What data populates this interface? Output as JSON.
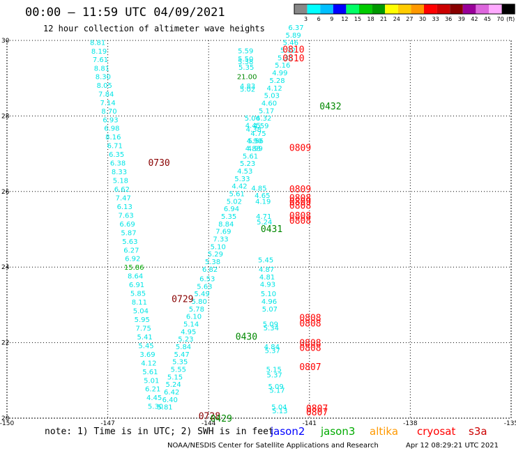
{
  "header": {
    "title": "00:00 – 11:59 UTC 04/09/2021",
    "subtitle": "12 hour collection of altimeter wave heights"
  },
  "scale_bar": {
    "unit": "(ft)",
    "labels": [
      "3",
      "6",
      "9",
      "12",
      "15",
      "18",
      "21",
      "24",
      "27",
      "30",
      "33",
      "36",
      "39",
      "42",
      "45",
      "70"
    ],
    "colors": [
      "#888888",
      "#00ffff",
      "#00bfff",
      "#0000ff",
      "#00ff66",
      "#00cc00",
      "#009900",
      "#ffff00",
      "#ffcc00",
      "#ff9900",
      "#ff0000",
      "#cc0000",
      "#880000",
      "#990099",
      "#dd66dd",
      "#ffaaff",
      "#000000"
    ]
  },
  "footer": {
    "note": "note: 1) Time is in UTC; 2) SWH is in feet",
    "credit": "NOAA/NESDIS Center for Satellite Applications and Research",
    "generated": "Apr 12 08:29:21 UTC 2021",
    "satellites": [
      {
        "name": "jason2",
        "color": "#0000ff"
      },
      {
        "name": "jason3",
        "color": "#00aa00"
      },
      {
        "name": "altika",
        "color": "#ff9900"
      },
      {
        "name": "cryosat",
        "color": "#ff0000"
      },
      {
        "name": "s3a",
        "color": "#cc0000"
      }
    ]
  },
  "colors": {
    "swh": "#00e5e5",
    "green_label": "#008800",
    "red_label": "#ff0000",
    "darkred_label": "#880000"
  },
  "chart_data": {
    "type": "scatter",
    "xlim": [
      -150,
      -135
    ],
    "ylim": [
      20,
      30
    ],
    "xticks": [
      -150,
      -147,
      -144,
      -141,
      -138,
      -135
    ],
    "xtick_labels": [
      "-150",
      "-147",
      "-144",
      "-141",
      "-138",
      "-135"
    ],
    "yticks": [
      20,
      22,
      24,
      26,
      28,
      30
    ],
    "ytick_labels": [
      "20",
      "22",
      "24",
      "26",
      "28",
      "30"
    ],
    "grid": true,
    "tracks": [
      {
        "id": "track-west",
        "points": [
          {
            "lon": -147.3,
            "lat": 29.95,
            "v": "8.81"
          },
          {
            "lon": -147.26,
            "lat": 29.72,
            "v": "8.19"
          },
          {
            "lon": -147.22,
            "lat": 29.5,
            "v": "7.61"
          },
          {
            "lon": -147.18,
            "lat": 29.27,
            "v": "8.81"
          },
          {
            "lon": -147.14,
            "lat": 29.05,
            "v": "8.30"
          },
          {
            "lon": -147.1,
            "lat": 28.82,
            "v": "8.05"
          },
          {
            "lon": -147.05,
            "lat": 28.59,
            "v": "7.84"
          },
          {
            "lon": -147.0,
            "lat": 28.36,
            "v": "7.14"
          },
          {
            "lon": -146.96,
            "lat": 28.14,
            "v": "8.70"
          },
          {
            "lon": -146.92,
            "lat": 27.91,
            "v": "6.93"
          },
          {
            "lon": -146.88,
            "lat": 27.68,
            "v": "6.98"
          },
          {
            "lon": -146.84,
            "lat": 27.45,
            "v": "8.16"
          },
          {
            "lon": -146.79,
            "lat": 27.22,
            "v": "6.71"
          },
          {
            "lon": -146.74,
            "lat": 26.99,
            "v": "6.35"
          },
          {
            "lon": -146.7,
            "lat": 26.76,
            "v": "6.38"
          },
          {
            "lon": -146.66,
            "lat": 26.53,
            "v": "8.33"
          },
          {
            "lon": -146.62,
            "lat": 26.3,
            "v": "5.18"
          },
          {
            "lon": -146.58,
            "lat": 26.07,
            "v": "6.62"
          },
          {
            "lon": -146.54,
            "lat": 25.84,
            "v": "7.47"
          },
          {
            "lon": -146.5,
            "lat": 25.61,
            "v": "6.13"
          },
          {
            "lon": -146.46,
            "lat": 25.38,
            "v": "7.63"
          },
          {
            "lon": -146.42,
            "lat": 25.15,
            "v": "6.69"
          },
          {
            "lon": -146.38,
            "lat": 24.92,
            "v": "5.87"
          },
          {
            "lon": -146.34,
            "lat": 24.69,
            "v": "5.63"
          },
          {
            "lon": -146.3,
            "lat": 24.46,
            "v": "6.27"
          },
          {
            "lon": -146.26,
            "lat": 24.23,
            "v": "6.92"
          },
          {
            "lon": -146.22,
            "lat": 24.0,
            "v": "15.86",
            "c": "#00aa00"
          },
          {
            "lon": -146.18,
            "lat": 23.77,
            "v": "8.64"
          },
          {
            "lon": -146.14,
            "lat": 23.54,
            "v": "6.91"
          },
          {
            "lon": -146.1,
            "lat": 23.31,
            "v": "5.85"
          },
          {
            "lon": -146.06,
            "lat": 23.08,
            "v": "8.11"
          },
          {
            "lon": -146.02,
            "lat": 22.85,
            "v": "5.04"
          },
          {
            "lon": -145.98,
            "lat": 22.62,
            "v": "5.95"
          },
          {
            "lon": -145.94,
            "lat": 22.39,
            "v": "7.75"
          },
          {
            "lon": -145.9,
            "lat": 22.16,
            "v": "5.41"
          },
          {
            "lon": -145.86,
            "lat": 21.93,
            "v": "5.45"
          },
          {
            "lon": -145.82,
            "lat": 21.7,
            "v": "3.69"
          },
          {
            "lon": -145.78,
            "lat": 21.47,
            "v": "4.12"
          },
          {
            "lon": -145.74,
            "lat": 21.24,
            "v": "5.61"
          },
          {
            "lon": -145.7,
            "lat": 21.01,
            "v": "5.01"
          },
          {
            "lon": -145.66,
            "lat": 20.78,
            "v": "6.21"
          },
          {
            "lon": -145.62,
            "lat": 20.55,
            "v": "4.45"
          },
          {
            "lon": -145.58,
            "lat": 20.32,
            "v": "5.30"
          }
        ]
      },
      {
        "id": "track-middle",
        "points": [
          {
            "lon": -145.3,
            "lat": 20.3,
            "v": "5.81"
          },
          {
            "lon": -145.15,
            "lat": 20.5,
            "v": "6.40"
          },
          {
            "lon": -145.1,
            "lat": 20.7,
            "v": "6.42"
          },
          {
            "lon": -145.05,
            "lat": 20.9,
            "v": "5.24"
          },
          {
            "lon": -145.0,
            "lat": 21.1,
            "v": "5.15"
          },
          {
            "lon": -144.9,
            "lat": 21.3,
            "v": "5.55"
          },
          {
            "lon": -144.85,
            "lat": 21.5,
            "v": "5.35"
          },
          {
            "lon": -144.8,
            "lat": 21.7,
            "v": "5.47"
          },
          {
            "lon": -144.75,
            "lat": 21.9,
            "v": "5.84"
          },
          {
            "lon": -144.68,
            "lat": 22.1,
            "v": "5.23"
          },
          {
            "lon": -144.6,
            "lat": 22.3,
            "v": "4.95"
          },
          {
            "lon": -144.52,
            "lat": 22.5,
            "v": "5.14"
          },
          {
            "lon": -144.44,
            "lat": 22.7,
            "v": "6.10"
          },
          {
            "lon": -144.36,
            "lat": 22.9,
            "v": "5.78"
          },
          {
            "lon": -144.28,
            "lat": 23.1,
            "v": "5.80"
          },
          {
            "lon": -144.2,
            "lat": 23.3,
            "v": "5.49"
          },
          {
            "lon": -144.12,
            "lat": 23.5,
            "v": "5.63"
          },
          {
            "lon": -144.04,
            "lat": 23.7,
            "v": "6.53"
          },
          {
            "lon": -143.96,
            "lat": 23.95,
            "v": "6.82"
          },
          {
            "lon": -143.88,
            "lat": 24.15,
            "v": "5.38"
          },
          {
            "lon": -143.8,
            "lat": 24.35,
            "v": "5.29"
          },
          {
            "lon": -143.72,
            "lat": 24.55,
            "v": "5.10"
          },
          {
            "lon": -143.64,
            "lat": 24.75,
            "v": "7.33"
          },
          {
            "lon": -143.56,
            "lat": 24.95,
            "v": "7.69"
          },
          {
            "lon": -143.48,
            "lat": 25.15,
            "v": "8.84"
          },
          {
            "lon": -143.4,
            "lat": 25.35,
            "v": "5.35"
          },
          {
            "lon": -143.32,
            "lat": 25.55,
            "v": "6.94"
          },
          {
            "lon": -143.24,
            "lat": 25.75,
            "v": "5.02"
          },
          {
            "lon": -143.16,
            "lat": 25.95,
            "v": "5.61"
          },
          {
            "lon": -143.08,
            "lat": 26.15,
            "v": "4.42"
          },
          {
            "lon": -143.0,
            "lat": 26.35,
            "v": "5.33"
          },
          {
            "lon": -142.92,
            "lat": 26.55,
            "v": "4.53"
          },
          {
            "lon": -142.84,
            "lat": 26.75,
            "v": "5.23"
          },
          {
            "lon": -142.76,
            "lat": 26.95,
            "v": "5.61"
          },
          {
            "lon": -142.68,
            "lat": 27.15,
            "v": "4.83"
          },
          {
            "lon": -142.6,
            "lat": 27.35,
            "v": "5.56"
          },
          {
            "lon": -142.52,
            "lat": 27.55,
            "v": "4.75"
          },
          {
            "lon": -142.44,
            "lat": 27.75,
            "v": "4.59"
          },
          {
            "lon": -142.36,
            "lat": 27.95,
            "v": "4.32"
          },
          {
            "lon": -142.28,
            "lat": 28.15,
            "v": "5.17"
          },
          {
            "lon": -142.2,
            "lat": 28.35,
            "v": "4.60"
          },
          {
            "lon": -142.12,
            "lat": 28.55,
            "v": "5.03"
          },
          {
            "lon": -142.04,
            "lat": 28.75,
            "v": "4.12"
          },
          {
            "lon": -141.96,
            "lat": 28.95,
            "v": "5.28"
          },
          {
            "lon": -141.88,
            "lat": 29.15,
            "v": "4.99"
          },
          {
            "lon": -141.8,
            "lat": 29.35,
            "v": "5.16"
          },
          {
            "lon": -141.72,
            "lat": 29.55,
            "v": "5.35"
          },
          {
            "lon": -141.64,
            "lat": 29.75,
            "v": "5.32"
          },
          {
            "lon": -141.56,
            "lat": 29.95,
            "v": "5.46"
          },
          {
            "lon": -141.48,
            "lat": 30.15,
            "v": "5.89"
          },
          {
            "lon": -141.4,
            "lat": 30.35,
            "v": "6.37"
          }
        ]
      },
      {
        "id": "track-east",
        "points": [
          {
            "lon": -142.9,
            "lat": 29.73,
            "v": "5.59"
          },
          {
            "lon": -142.9,
            "lat": 29.52,
            "v": "5.50"
          },
          {
            "lon": -142.9,
            "lat": 29.45,
            "v": "5.38"
          },
          {
            "lon": -142.88,
            "lat": 29.3,
            "v": "5.35"
          },
          {
            "lon": -142.86,
            "lat": 29.05,
            "v": "21.00",
            "c": "#008800"
          },
          {
            "lon": -142.84,
            "lat": 28.8,
            "v": "4.83"
          },
          {
            "lon": -142.84,
            "lat": 28.72,
            "v": "5.02"
          },
          {
            "lon": -142.7,
            "lat": 27.95,
            "v": "5.06"
          },
          {
            "lon": -142.68,
            "lat": 27.76,
            "v": "4.45"
          },
          {
            "lon": -142.66,
            "lat": 27.66,
            "v": "4.38"
          },
          {
            "lon": -142.64,
            "lat": 27.35,
            "v": "4.90"
          },
          {
            "lon": -142.62,
            "lat": 27.15,
            "v": "4.99"
          },
          {
            "lon": -142.5,
            "lat": 26.1,
            "v": "4.85"
          },
          {
            "lon": -142.4,
            "lat": 25.9,
            "v": "4.65"
          },
          {
            "lon": -142.38,
            "lat": 25.75,
            "v": "4.19"
          },
          {
            "lon": -142.36,
            "lat": 25.35,
            "v": "4.71"
          },
          {
            "lon": -142.34,
            "lat": 25.2,
            "v": "5.24"
          },
          {
            "lon": -142.3,
            "lat": 24.2,
            "v": "5.45"
          },
          {
            "lon": -142.28,
            "lat": 23.95,
            "v": "4.87"
          },
          {
            "lon": -142.26,
            "lat": 23.75,
            "v": "4.81"
          },
          {
            "lon": -142.24,
            "lat": 23.55,
            "v": "4.93"
          },
          {
            "lon": -142.22,
            "lat": 23.3,
            "v": "5.10"
          },
          {
            "lon": -142.2,
            "lat": 23.1,
            "v": "4.96"
          },
          {
            "lon": -142.18,
            "lat": 22.9,
            "v": "5.07"
          },
          {
            "lon": -142.16,
            "lat": 22.5,
            "v": "5.09"
          },
          {
            "lon": -142.14,
            "lat": 22.4,
            "v": "5.34"
          },
          {
            "lon": -142.12,
            "lat": 21.9,
            "v": "4.84"
          },
          {
            "lon": -142.1,
            "lat": 21.8,
            "v": "5.37"
          },
          {
            "lon": -142.06,
            "lat": 21.3,
            "v": "5.15"
          },
          {
            "lon": -142.04,
            "lat": 21.15,
            "v": "5.37"
          },
          {
            "lon": -142.0,
            "lat": 20.85,
            "v": "5.09"
          },
          {
            "lon": -141.96,
            "lat": 20.75,
            "v": "5.17"
          },
          {
            "lon": -141.9,
            "lat": 20.3,
            "v": "5.04"
          },
          {
            "lon": -141.88,
            "lat": 20.2,
            "v": "5.13"
          }
        ]
      }
    ],
    "time_labels": [
      {
        "lon": -141.8,
        "lat": 29.75,
        "t": "0810",
        "c": "#ff0000"
      },
      {
        "lon": -141.8,
        "lat": 29.52,
        "t": "0810",
        "c": "#ff0000"
      },
      {
        "lon": -140.7,
        "lat": 28.25,
        "t": "0432",
        "c": "#008800"
      },
      {
        "lon": -141.6,
        "lat": 27.15,
        "t": "0809",
        "c": "#ff0000"
      },
      {
        "lon": -145.8,
        "lat": 26.75,
        "t": "0730",
        "c": "#880000"
      },
      {
        "lon": -141.6,
        "lat": 26.05,
        "t": "0809",
        "c": "#ff0000"
      },
      {
        "lon": -141.6,
        "lat": 25.82,
        "t": "0808",
        "c": "#ff0000"
      },
      {
        "lon": -141.6,
        "lat": 25.72,
        "t": "0809",
        "c": "#ff0000"
      },
      {
        "lon": -141.6,
        "lat": 25.62,
        "t": "0808",
        "c": "#ff0000"
      },
      {
        "lon": -141.6,
        "lat": 25.35,
        "t": "0808",
        "c": "#ff0000"
      },
      {
        "lon": -141.6,
        "lat": 25.22,
        "t": "0808",
        "c": "#ff0000"
      },
      {
        "lon": -142.45,
        "lat": 25.0,
        "t": "0431",
        "c": "#008800"
      },
      {
        "lon": -145.1,
        "lat": 23.15,
        "t": "0729",
        "c": "#880000"
      },
      {
        "lon": -141.3,
        "lat": 22.65,
        "t": "0808",
        "c": "#ff0000"
      },
      {
        "lon": -141.3,
        "lat": 22.5,
        "t": "0808",
        "c": "#ff0000"
      },
      {
        "lon": -143.2,
        "lat": 22.15,
        "t": "0430",
        "c": "#008800"
      },
      {
        "lon": -141.3,
        "lat": 21.98,
        "t": "0808",
        "c": "#ff0000"
      },
      {
        "lon": -141.3,
        "lat": 21.85,
        "t": "0808",
        "c": "#ff0000"
      },
      {
        "lon": -141.3,
        "lat": 21.35,
        "t": "0807",
        "c": "#ff0000"
      },
      {
        "lon": -141.1,
        "lat": 20.25,
        "t": "0807",
        "c": "#ff0000"
      },
      {
        "lon": -141.1,
        "lat": 20.15,
        "t": "0807",
        "c": "#ff0000"
      },
      {
        "lon": -144.3,
        "lat": 20.05,
        "t": "0728",
        "c": "#880000"
      },
      {
        "lon": -143.95,
        "lat": 19.98,
        "t": "0429",
        "c": "#008800"
      }
    ]
  }
}
